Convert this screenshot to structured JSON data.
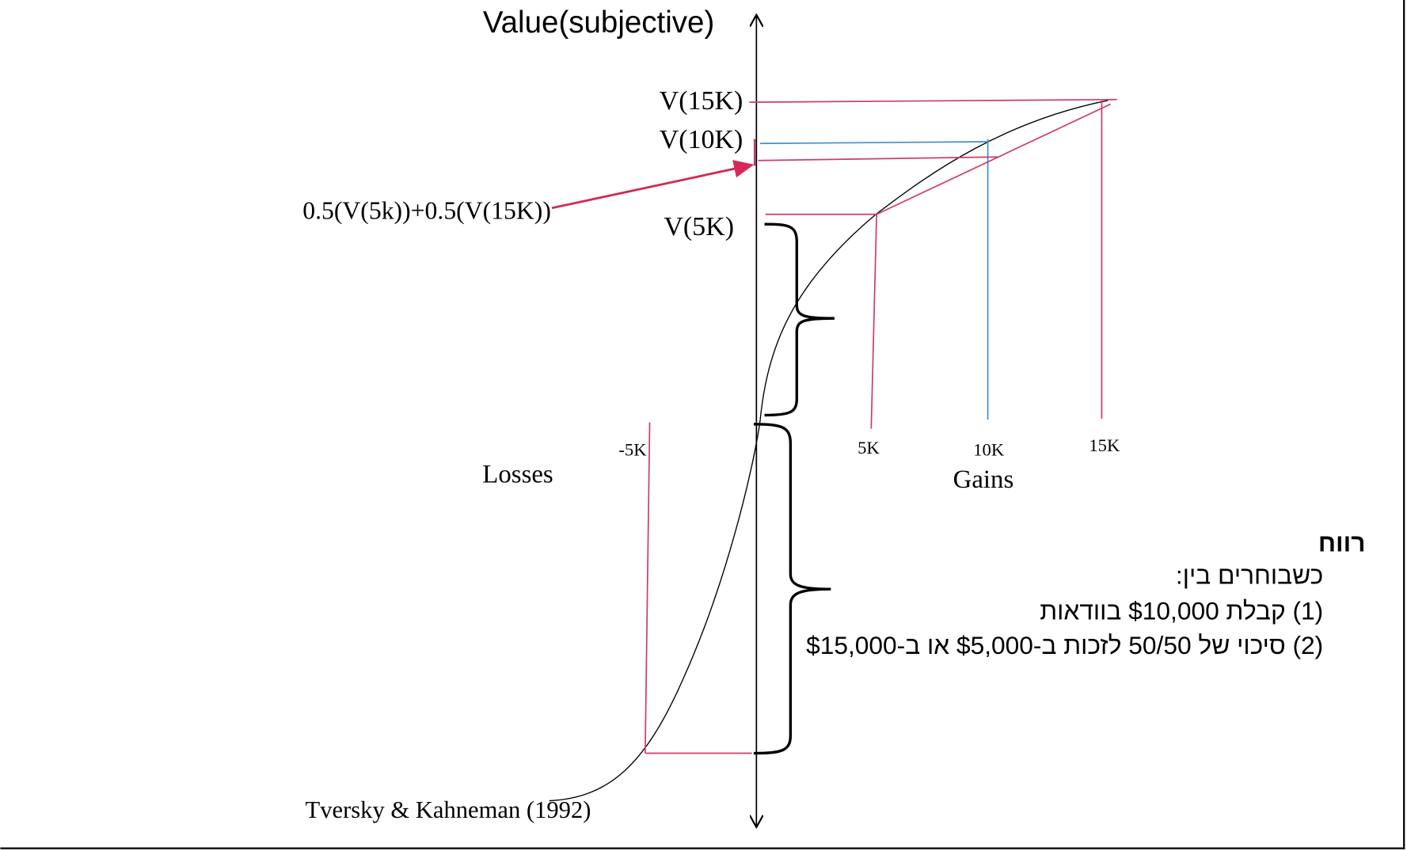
{
  "axis": {
    "y_title": "Value(subjective)",
    "gains_label": "Gains",
    "losses_label": "Losses"
  },
  "y_labels": {
    "v15k": "V(15K)",
    "v10k": "V(10K)",
    "v5k": "V(5K)",
    "expected": "0.5(V(5k))+0.5(V(15K))"
  },
  "x_ticks": {
    "neg5k": "-5K",
    "5k": "5K",
    "10k": "10K",
    "15k": "15K"
  },
  "citation": "Tversky & Kahneman (1992)",
  "text_box": {
    "heading": "רווח",
    "lines": [
      "כשבוחרים בין:",
      "(1) קבלת $10,000 בוודאות",
      "(2) סיכוי של 50/50 לזכות ב-$5,000 או ב-$15,000"
    ]
  },
  "colors": {
    "red": "#cc3d6b",
    "blue": "#3b8fd0",
    "arrow": "#d42a55",
    "curve": "#000000"
  }
}
